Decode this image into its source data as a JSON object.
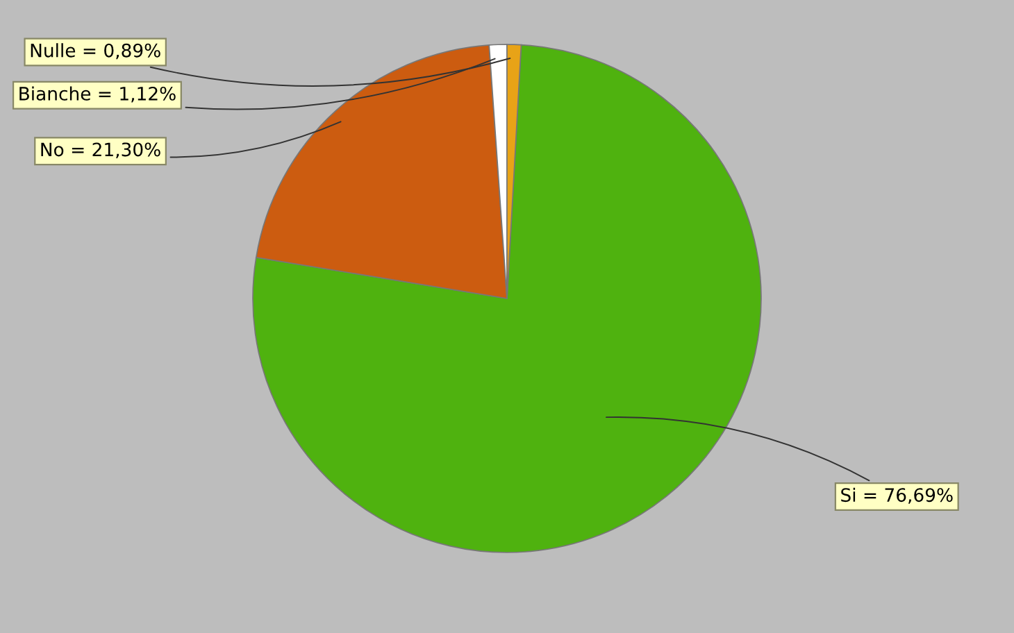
{
  "chart_data": {
    "type": "pie",
    "categories": [
      "Si",
      "No",
      "Bianche",
      "Nulle"
    ],
    "values": [
      76.69,
      21.3,
      1.12,
      0.89
    ],
    "colors": [
      "#4fb20f",
      "#cc5c10",
      "#ffffff",
      "#e8a317"
    ],
    "value_labels": [
      "= 76,69%",
      "= 21,30%",
      "= 1,12%",
      "= 0,89%"
    ],
    "legend": false
  }
}
